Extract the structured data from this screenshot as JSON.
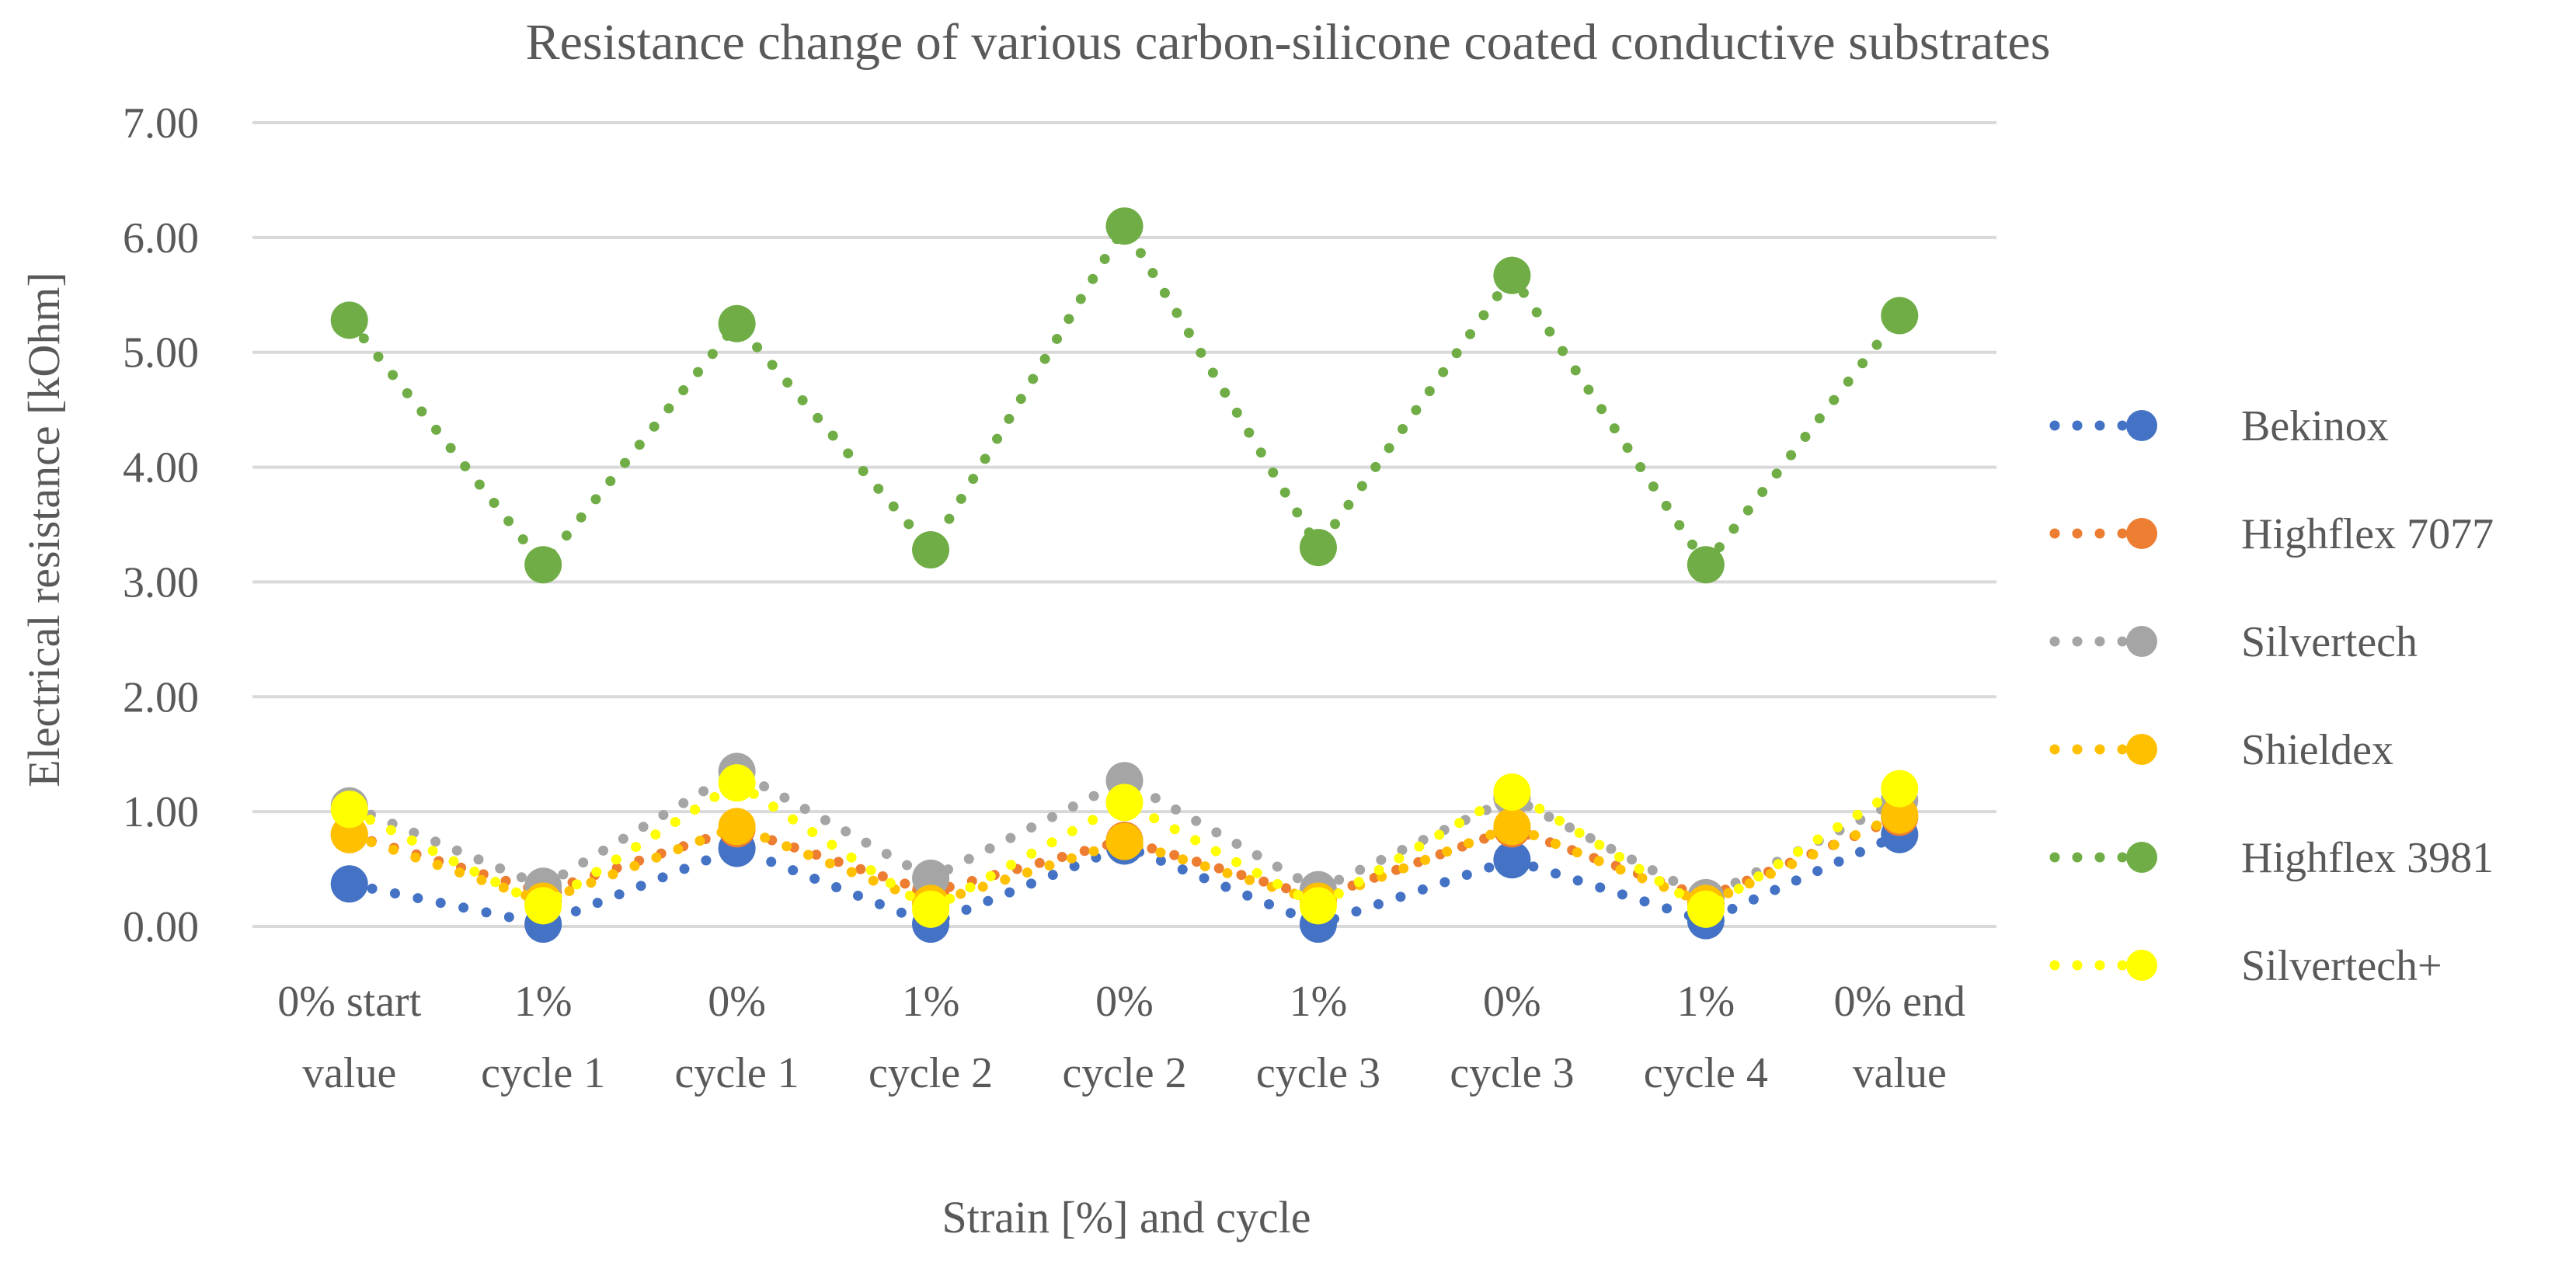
{
  "chart_data": {
    "type": "line",
    "title": "Resistance change of various carbon-silicone coated conductive substrates",
    "xlabel": "Strain [%] and cycle",
    "ylabel": "Electrical resistance [kOhm]",
    "ylim": [
      0,
      7
    ],
    "yticks": [
      "0.00",
      "1.00",
      "2.00",
      "3.00",
      "4.00",
      "5.00",
      "6.00",
      "7.00"
    ],
    "grid": true,
    "legend_position": "right",
    "line_style": "dotted",
    "categories": [
      [
        "0% start",
        "value"
      ],
      [
        "1%",
        "cycle 1"
      ],
      [
        "0%",
        "cycle 1"
      ],
      [
        "1%",
        "cycle 2"
      ],
      [
        "0%",
        "cycle 2"
      ],
      [
        "1%",
        "cycle 3"
      ],
      [
        "0%",
        "cycle 3"
      ],
      [
        "1%",
        "cycle 4"
      ],
      [
        "0% end",
        "value"
      ]
    ],
    "series": [
      {
        "name": "Bekinox",
        "color": "#4472C4",
        "values": [
          0.37,
          0.02,
          0.68,
          0.02,
          0.7,
          0.02,
          0.58,
          0.05,
          0.8
        ]
      },
      {
        "name": "Highflex 7077",
        "color": "#ED7D31",
        "values": [
          0.8,
          0.3,
          0.85,
          0.3,
          0.75,
          0.25,
          0.85,
          0.25,
          0.95
        ]
      },
      {
        "name": "Silvertech",
        "color": "#A5A5A5",
        "values": [
          1.05,
          0.35,
          1.35,
          0.42,
          1.27,
          0.32,
          1.12,
          0.25,
          1.1
        ]
      },
      {
        "name": "Shieldex",
        "color": "#FFC000",
        "values": [
          0.8,
          0.22,
          0.87,
          0.2,
          0.74,
          0.22,
          0.87,
          0.2,
          0.97
        ]
      },
      {
        "name": "Highflex 3981",
        "color": "#70AD47",
        "values": [
          5.28,
          3.15,
          5.25,
          3.28,
          6.1,
          3.3,
          5.67,
          3.15,
          5.32
        ]
      },
      {
        "name": "Silvertech+",
        "color": "#FFFF00",
        "values": [
          1.02,
          0.18,
          1.25,
          0.15,
          1.08,
          0.18,
          1.17,
          0.15,
          1.2
        ]
      }
    ]
  }
}
